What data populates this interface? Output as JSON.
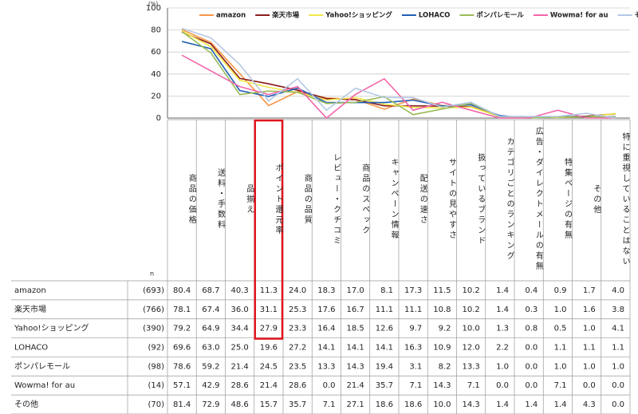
{
  "chart_data": {
    "type": "line",
    "y_unit": "(%)",
    "n_header": "n",
    "categories": [
      "商品の価格",
      "送料・手数料",
      "品揃え",
      "ポイント還元率",
      "商品の品質",
      "レビュー・クチコミ",
      "商品のスペック",
      "キャンペーン情報",
      "配送の速さ",
      "サイトの見やすさ",
      "扱っているブランド",
      "カテゴリごとのランキング",
      "広告・ダイレクトメールの有無",
      "特集ページの有無",
      "その他",
      "特に重視していることはない"
    ],
    "ylim": [
      0,
      100
    ],
    "yticks": [
      0,
      20,
      40,
      60,
      80,
      100
    ],
    "grid": true,
    "legend": "top",
    "series": [
      {
        "name": "amazon",
        "n": "(693)",
        "color": "#f79646",
        "values": [
          80.4,
          68.7,
          40.3,
          11.3,
          24.0,
          18.3,
          17.0,
          8.1,
          17.3,
          11.5,
          10.2,
          1.4,
          0.4,
          0.9,
          1.7,
          4.0
        ],
        "value_labels": [
          "80.4",
          "68.7",
          "40.3",
          "11.3",
          "24.0",
          "18.3",
          "17.0",
          "8.1",
          "17.3",
          "11.5",
          "10.2",
          "1.4",
          "0.4",
          "0.9",
          "1.7",
          "4.0"
        ]
      },
      {
        "name": "楽天市場",
        "n": "(766)",
        "color": "#8b1c1c",
        "values": [
          78.1,
          67.4,
          36.0,
          31.1,
          25.3,
          17.6,
          16.7,
          11.1,
          11.1,
          10.8,
          10.2,
          1.4,
          0.3,
          1.0,
          1.6,
          3.8
        ],
        "value_labels": [
          "78.1",
          "67.4",
          "36.0",
          "31.1",
          "25.3",
          "17.6",
          "16.7",
          "11.1",
          "11.1",
          "10.8",
          "10.2",
          "1.4",
          "0.3",
          "1.0",
          "1.6",
          "3.8"
        ]
      },
      {
        "name": "Yahoo!ショッピング",
        "n": "(390)",
        "color": "#f2e84a",
        "values": [
          79.2,
          64.9,
          34.4,
          27.9,
          23.3,
          16.4,
          18.5,
          12.6,
          9.7,
          9.2,
          10.0,
          1.3,
          0.8,
          0.5,
          1.0,
          4.1
        ],
        "value_labels": [
          "79.2",
          "64.9",
          "34.4",
          "27.9",
          "23.3",
          "16.4",
          "18.5",
          "12.6",
          "9.7",
          "9.2",
          "10.0",
          "1.3",
          "0.8",
          "0.5",
          "1.0",
          "4.1"
        ]
      },
      {
        "name": "LOHACO",
        "n": "(92)",
        "color": "#1f5fb4",
        "values": [
          69.6,
          63.0,
          25.0,
          19.6,
          27.2,
          14.1,
          14.1,
          14.1,
          16.3,
          10.9,
          12.0,
          2.2,
          0.0,
          1.1,
          1.1,
          1.1
        ],
        "value_labels": [
          "69.6",
          "63.0",
          "25.0",
          "19.6",
          "27.2",
          "14.1",
          "14.1",
          "14.1",
          "16.3",
          "10.9",
          "12.0",
          "2.2",
          "0.0",
          "1.1",
          "1.1",
          "1.1"
        ]
      },
      {
        "name": "ポンパレモール",
        "n": "(98)",
        "color": "#9bbb59",
        "values": [
          78.6,
          59.2,
          21.4,
          24.5,
          23.5,
          13.3,
          14.3,
          19.4,
          3.1,
          8.2,
          13.3,
          1.0,
          0.0,
          1.0,
          1.0,
          1.0
        ],
        "value_labels": [
          "78.6",
          "59.2",
          "21.4",
          "24.5",
          "23.5",
          "13.3",
          "14.3",
          "19.4",
          "3.1",
          "8.2",
          "13.3",
          "1.0",
          "0.0",
          "1.0",
          "1.0",
          "1.0"
        ]
      },
      {
        "name": "Wowma! for au",
        "n": "(14)",
        "color": "#f266aa",
        "values": [
          57.1,
          42.9,
          28.6,
          21.4,
          28.6,
          0.0,
          21.4,
          35.7,
          7.1,
          14.3,
          7.1,
          0.0,
          0.0,
          7.1,
          0.0,
          0.0
        ],
        "value_labels": [
          "57.1",
          "42.9",
          "28.6",
          "21.4",
          "28.6",
          "0.0",
          "21.4",
          "35.7",
          "7.1",
          "14.3",
          "7.1",
          "0.0",
          "0.0",
          "7.1",
          "0.0",
          "0.0"
        ]
      },
      {
        "name": "その他",
        "n": "(70)",
        "color": "#b4c8e4",
        "values": [
          81.4,
          72.9,
          48.6,
          15.7,
          35.7,
          7.1,
          27.1,
          18.6,
          18.6,
          10.0,
          14.3,
          1.4,
          1.4,
          1.4,
          4.3,
          0.0
        ],
        "value_labels": [
          "81.4",
          "72.9",
          "48.6",
          "15.7",
          "35.7",
          "7.1",
          "27.1",
          "18.6",
          "18.6",
          "10.0",
          "14.3",
          "1.4",
          "1.4",
          "1.4",
          "4.3",
          "0.0"
        ]
      }
    ]
  }
}
